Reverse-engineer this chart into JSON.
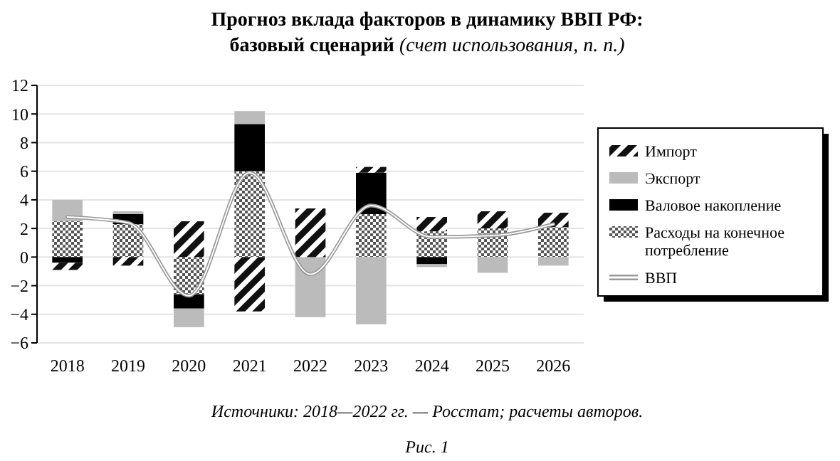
{
  "chart_data": {
    "type": "bar",
    "stacked": true,
    "title": "Прогноз вклада факторов в динамику ВВП РФ:",
    "subtitle": "базовый сценарий (счет использования, п. п.)",
    "categories": [
      "2018",
      "2019",
      "2020",
      "2021",
      "2022",
      "2023",
      "2024",
      "2025",
      "2026"
    ],
    "series": [
      {
        "name": "Расходы на конечное потребление",
        "color": "#555555",
        "values": [
          2.5,
          2.3,
          -2.6,
          6.0,
          null,
          3.0,
          1.8,
          2.0,
          2.1
        ]
      },
      {
        "name": "Валовое накопление",
        "color": "#000000",
        "values": [
          -0.4,
          0.7,
          -1.0,
          3.3,
          null,
          2.9,
          -0.5,
          null,
          null
        ]
      },
      {
        "name": "Экспорт",
        "color": "#bbbbbb",
        "values": [
          1.5,
          0.2,
          -1.3,
          0.9,
          -4.2,
          -4.7,
          -0.2,
          -1.1,
          -0.6
        ]
      },
      {
        "name": "Импорт",
        "color": "#111111",
        "values": [
          -0.5,
          -0.6,
          2.5,
          -3.8,
          3.4,
          0.4,
          1.0,
          1.2,
          1.0
        ]
      },
      {
        "name": "ВВП",
        "type": "line",
        "color": "#999999",
        "values": [
          2.8,
          2.4,
          -2.7,
          5.9,
          -1.2,
          3.6,
          1.4,
          1.5,
          2.3
        ]
      }
    ],
    "ylim": [
      -6,
      12
    ],
    "yticks": [
      -6,
      -4,
      -2,
      0,
      2,
      4,
      6,
      8,
      10,
      12
    ],
    "grid": "y",
    "legend": "right",
    "annotations": [
      "Источники: 2018—2022 гг. — Росстат; расчеты авторов.",
      "Рис. 1"
    ]
  }
}
